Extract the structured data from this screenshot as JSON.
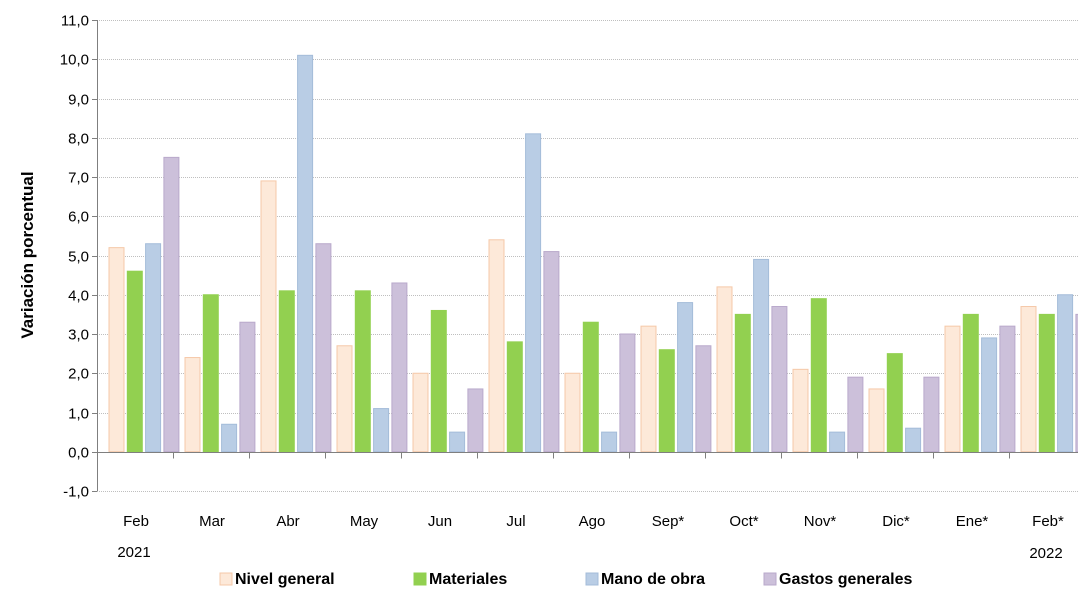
{
  "chart_data": {
    "type": "bar",
    "ylabel": "Variación porcentual",
    "ylim": [
      -1.0,
      11.0
    ],
    "ytick_step": 1.0,
    "grid": true,
    "legend_position": "bottom",
    "categories": [
      "Feb",
      "Mar",
      "Abr",
      "May",
      "Jun",
      "Jul",
      "Ago",
      "Sep*",
      "Oct*",
      "Nov*",
      "Dic*",
      "Ene*",
      "Feb*"
    ],
    "year_labels": {
      "first": "2021",
      "last": "2022"
    },
    "series": [
      {
        "name": "Nivel general",
        "fill": "#fde9d9",
        "stroke": "#f5c8a8",
        "values": [
          5.2,
          2.4,
          6.9,
          2.7,
          2.0,
          5.4,
          2.0,
          3.2,
          4.2,
          2.1,
          1.6,
          3.2,
          3.7
        ]
      },
      {
        "name": "Materiales",
        "fill": "#92d050",
        "stroke": "#92d050",
        "values": [
          4.6,
          4.0,
          4.1,
          4.1,
          3.6,
          2.8,
          3.3,
          2.6,
          3.5,
          3.9,
          2.5,
          3.5,
          3.5
        ]
      },
      {
        "name": "Mano de obra",
        "fill": "#b9cde5",
        "stroke": "#a4bcd9",
        "values": [
          5.3,
          0.7,
          10.1,
          1.1,
          0.5,
          8.1,
          0.5,
          3.8,
          4.9,
          0.5,
          0.6,
          2.9,
          4.0
        ]
      },
      {
        "name": "Gastos generales",
        "fill": "#ccc0da",
        "stroke": "#b9a9cb",
        "values": [
          7.5,
          3.3,
          5.3,
          4.3,
          1.6,
          5.1,
          3.0,
          2.7,
          3.7,
          1.9,
          1.9,
          3.2,
          3.5
        ]
      }
    ]
  }
}
